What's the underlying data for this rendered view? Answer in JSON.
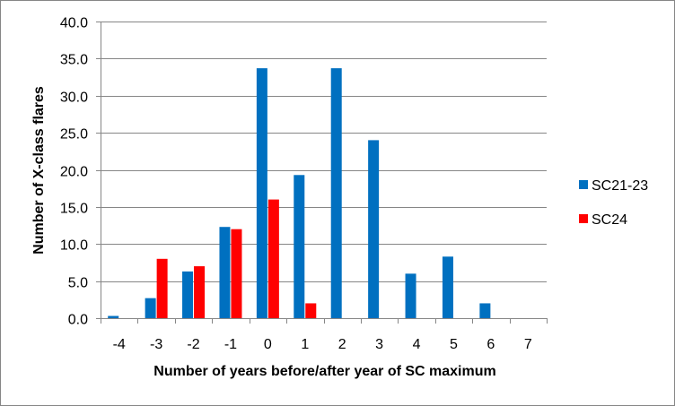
{
  "chart_data": {
    "type": "bar",
    "title": "",
    "xlabel": "Number of years before/after year of SC maximum",
    "ylabel": "Number of X-class flares",
    "categories": [
      "-4",
      "-3",
      "-2",
      "-1",
      "0",
      "1",
      "2",
      "3",
      "4",
      "5",
      "6",
      "7"
    ],
    "ylim": [
      0,
      40
    ],
    "ytick_labels": [
      "0.0",
      "5.0",
      "10.0",
      "15.0",
      "20.0",
      "25.0",
      "30.0",
      "35.0",
      "40.0"
    ],
    "grid": true,
    "legend_position": "right",
    "series": [
      {
        "name": "SC21-23",
        "color": "#0070C0",
        "values": [
          0.3,
          2.7,
          6.3,
          12.3,
          33.7,
          19.3,
          33.7,
          24.0,
          6.0,
          8.3,
          2.0,
          0
        ]
      },
      {
        "name": "SC24",
        "color": "#FF0000",
        "values": [
          0,
          8.0,
          7.0,
          12.0,
          16.0,
          2.0,
          0,
          0,
          0,
          0,
          0,
          0
        ]
      }
    ]
  }
}
